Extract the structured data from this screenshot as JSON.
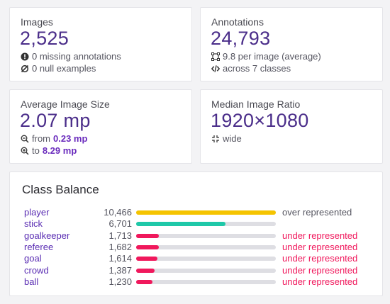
{
  "images": {
    "title": "Images",
    "value": "2,525",
    "missing": "0 missing annotations",
    "null": "0 null examples"
  },
  "annotations": {
    "title": "Annotations",
    "value": "24,793",
    "per_image": "9.8 per image (average)",
    "classes": "across 7 classes"
  },
  "avg_size": {
    "title": "Average Image Size",
    "value": "2.07 mp",
    "from_prefix": "from",
    "from_value": "0.23 mp",
    "to_prefix": "to",
    "to_value": "8.29 mp"
  },
  "ratio": {
    "title": "Median Image Ratio",
    "value": "1920×1080",
    "shape": "wide"
  },
  "class_balance": {
    "title": "Class Balance",
    "max": 10466,
    "classes": [
      {
        "name": "player",
        "count": "10,466",
        "value": 10466,
        "status": "over represented",
        "color": "#f5c400",
        "status_color": "#555560"
      },
      {
        "name": "stick",
        "count": "6,701",
        "value": 6701,
        "status": "",
        "color": "#1fc8a8",
        "status_color": "#555560"
      },
      {
        "name": "goalkeeper",
        "count": "1,713",
        "value": 1713,
        "status": "under represented",
        "color": "#f0185c",
        "status_color": "#f0185c"
      },
      {
        "name": "referee",
        "count": "1,682",
        "value": 1682,
        "status": "under represented",
        "color": "#f0185c",
        "status_color": "#f0185c"
      },
      {
        "name": "goal",
        "count": "1,614",
        "value": 1614,
        "status": "under represented",
        "color": "#f0185c",
        "status_color": "#f0185c"
      },
      {
        "name": "crowd",
        "count": "1,387",
        "value": 1387,
        "status": "under represented",
        "color": "#f0185c",
        "status_color": "#f0185c"
      },
      {
        "name": "ball",
        "count": "1,230",
        "value": 1230,
        "status": "under represented",
        "color": "#f0185c",
        "status_color": "#f0185c"
      }
    ]
  },
  "icons": {
    "missing": "exclamation-circle-icon",
    "null": "empty-set-icon",
    "per_image": "bounding-box-icon",
    "classes": "code-icon",
    "from": "zoom-out-icon",
    "to": "zoom-in-icon",
    "shape": "aspect-ratio-icon"
  }
}
